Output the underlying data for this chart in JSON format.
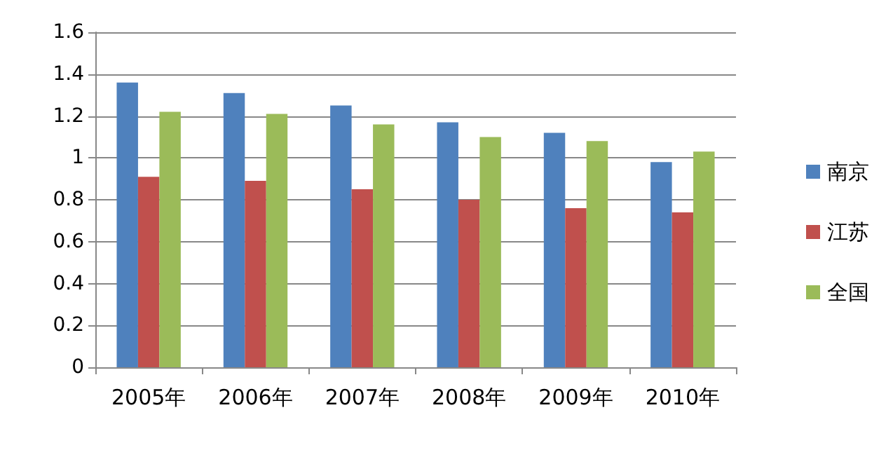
{
  "chart_data": {
    "type": "bar",
    "categories": [
      "2005年",
      "2006年",
      "2007年",
      "2008年",
      "2009年",
      "2010年"
    ],
    "series": [
      {
        "name": "南京",
        "color": "#4f81bd",
        "values": [
          1.36,
          1.31,
          1.25,
          1.17,
          1.12,
          0.98
        ]
      },
      {
        "name": "江苏",
        "color": "#c0504d",
        "values": [
          0.91,
          0.89,
          0.85,
          0.8,
          0.76,
          0.74
        ]
      },
      {
        "name": "全国",
        "color": "#9bbb59",
        "values": [
          1.22,
          1.21,
          1.16,
          1.1,
          1.08,
          1.03
        ]
      }
    ],
    "ylim": [
      0,
      1.6
    ],
    "yticks": [
      0,
      0.2,
      0.4,
      0.6,
      0.8,
      1,
      1.2,
      1.4,
      1.6
    ],
    "grid": "y",
    "legend": "right"
  }
}
